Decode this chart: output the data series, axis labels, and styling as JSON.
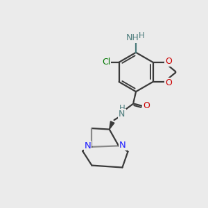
{
  "bg_color": "#ebebeb",
  "bond_color": "#3a3a3a",
  "bond_width": 1.6,
  "atom_colors": {
    "N_blue": "#1a1aff",
    "N_gray": "#4a7a7a",
    "O_red": "#cc0000",
    "Cl_green": "#007700",
    "H_gray": "#4a7a7a"
  },
  "figsize": [
    3.0,
    3.0
  ],
  "dpi": 100,
  "xlim": [
    0,
    10
  ],
  "ylim": [
    0,
    10
  ]
}
